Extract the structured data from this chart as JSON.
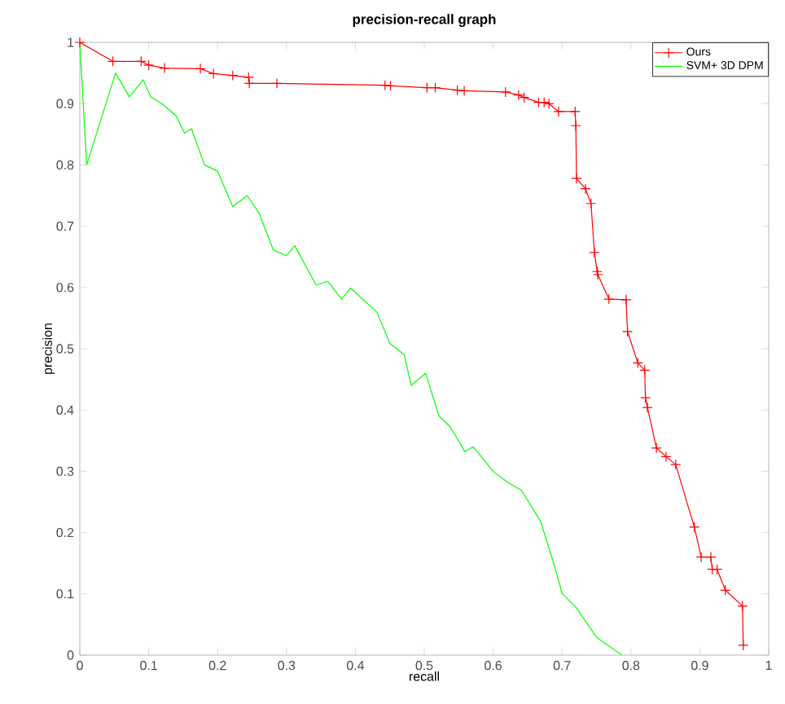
{
  "chart_data": {
    "type": "line",
    "title": "precision-recall graph",
    "xlabel": "recall",
    "ylabel": "precision",
    "xlim": [
      0,
      1
    ],
    "ylim": [
      0,
      1
    ],
    "xticks": [
      0,
      0.1,
      0.2,
      0.3,
      0.4,
      0.5,
      0.6,
      0.7,
      0.8,
      0.9,
      1
    ],
    "yticks": [
      0,
      0.1,
      0.2,
      0.3,
      0.4,
      0.5,
      0.6,
      0.7,
      0.8,
      0.9,
      1
    ],
    "legend": "top right",
    "grid": false,
    "series": [
      {
        "name": "Ours",
        "color": "#ff0000",
        "marker": "cross",
        "x": [
          0,
          0.048,
          0.089,
          0.1,
          0.123,
          0.175,
          0.194,
          0.222,
          0.245,
          0.246,
          0.286,
          0.443,
          0.451,
          0.504,
          0.516,
          0.548,
          0.558,
          0.618,
          0.637,
          0.645,
          0.666,
          0.674,
          0.681,
          0.695,
          0.719,
          0.72,
          0.721,
          0.734,
          0.742,
          0.747,
          0.751,
          0.752,
          0.768,
          0.793,
          0.795,
          0.81,
          0.82,
          0.821,
          0.824,
          0.837,
          0.851,
          0.865,
          0.892,
          0.902,
          0.916,
          0.918,
          0.925,
          0.937,
          0.962,
          0.963
        ],
        "values": [
          1,
          0.969,
          0.969,
          0.963,
          0.958,
          0.957,
          0.949,
          0.946,
          0.943,
          0.933,
          0.933,
          0.93,
          0.929,
          0.926,
          0.926,
          0.922,
          0.921,
          0.919,
          0.914,
          0.91,
          0.902,
          0.902,
          0.9,
          0.887,
          0.887,
          0.864,
          0.778,
          0.761,
          0.737,
          0.657,
          0.626,
          0.621,
          0.581,
          0.58,
          0.528,
          0.477,
          0.465,
          0.42,
          0.404,
          0.338,
          0.324,
          0.311,
          0.209,
          0.16,
          0.16,
          0.14,
          0.14,
          0.106,
          0.08,
          0.016
        ]
      },
      {
        "name": "SVM+ 3D DPM",
        "color": "#00ff00",
        "marker": "none",
        "x": [
          0,
          0.01,
          0.052,
          0.072,
          0.092,
          0.103,
          0.119,
          0.14,
          0.152,
          0.162,
          0.181,
          0.2,
          0.222,
          0.243,
          0.26,
          0.281,
          0.3,
          0.312,
          0.343,
          0.36,
          0.38,
          0.393,
          0.431,
          0.45,
          0.471,
          0.481,
          0.502,
          0.521,
          0.538,
          0.559,
          0.571,
          0.6,
          0.621,
          0.641,
          0.669,
          0.69,
          0.7,
          0.721,
          0.75,
          0.787
        ],
        "values": [
          1,
          0.8,
          0.95,
          0.911,
          0.939,
          0.911,
          0.9,
          0.88,
          0.852,
          0.859,
          0.8,
          0.79,
          0.732,
          0.75,
          0.722,
          0.661,
          0.652,
          0.668,
          0.604,
          0.61,
          0.581,
          0.599,
          0.56,
          0.509,
          0.49,
          0.44,
          0.46,
          0.391,
          0.372,
          0.332,
          0.34,
          0.3,
          0.282,
          0.269,
          0.218,
          0.142,
          0.101,
          0.077,
          0.029,
          0
        ]
      }
    ]
  }
}
